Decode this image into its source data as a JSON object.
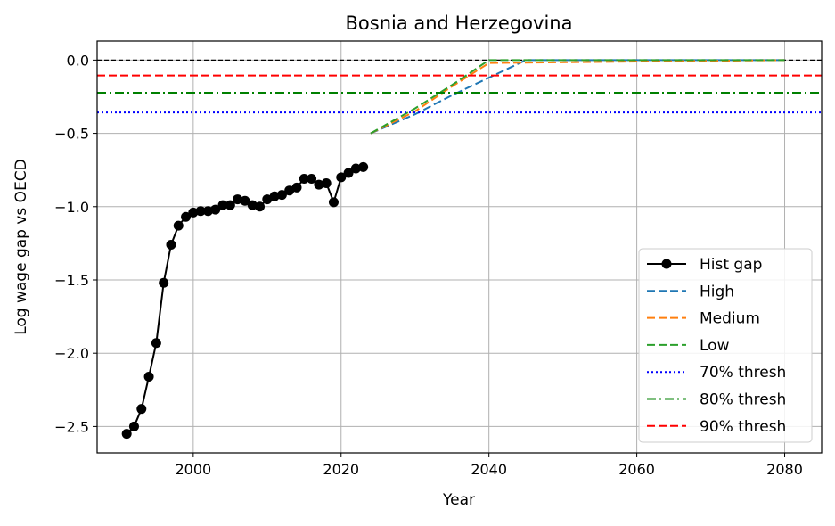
{
  "chart_data": {
    "type": "line",
    "title": "Bosnia and Herzegovina",
    "xlabel": "Year",
    "ylabel": "Log wage gap vs OECD",
    "xlim": [
      1987,
      2085
    ],
    "ylim": [
      -2.68,
      0.13
    ],
    "xticks": [
      2000,
      2020,
      2040,
      2060,
      2080
    ],
    "yticks": [
      0.0,
      -0.5,
      -1.0,
      -1.5,
      -2.0,
      -2.5
    ],
    "ytick_labels": [
      "0.0",
      "−0.5",
      "−1.0",
      "−1.5",
      "−2.0",
      "−2.5"
    ],
    "grid": true,
    "legend_position": "lower-right",
    "series": [
      {
        "name": "Hist gap",
        "kind": "history",
        "color": "#000000",
        "style": "solid",
        "marker": "circle",
        "x": [
          1991,
          1992,
          1993,
          1994,
          1995,
          1996,
          1997,
          1998,
          1999,
          2000,
          2001,
          2002,
          2003,
          2004,
          2005,
          2006,
          2007,
          2008,
          2009,
          2010,
          2011,
          2012,
          2013,
          2014,
          2015,
          2016,
          2017,
          2018,
          2019,
          2020,
          2021,
          2022,
          2023
        ],
        "y": [
          -2.55,
          -2.5,
          -2.38,
          -2.16,
          -1.93,
          -1.52,
          -1.26,
          -1.13,
          -1.07,
          -1.04,
          -1.03,
          -1.03,
          -1.02,
          -0.99,
          -0.99,
          -0.95,
          -0.96,
          -0.99,
          -1.0,
          -0.95,
          -0.93,
          -0.92,
          -0.89,
          -0.87,
          -0.81,
          -0.81,
          -0.85,
          -0.84,
          -0.97,
          -0.8,
          -0.77,
          -0.74,
          -0.73
        ]
      },
      {
        "name": "High",
        "kind": "scenario",
        "color": "#1f77b4",
        "style": "dashed",
        "x": [
          2024,
          2030,
          2035,
          2040,
          2045,
          2080
        ],
        "y": [
          -0.5,
          -0.37,
          -0.24,
          -0.12,
          0.0,
          0.0
        ]
      },
      {
        "name": "Medium",
        "kind": "scenario",
        "color": "#ff7f0e",
        "style": "dashed",
        "x": [
          2024,
          2030,
          2035,
          2040,
          2080
        ],
        "y": [
          -0.5,
          -0.35,
          -0.18,
          -0.02,
          0.0
        ]
      },
      {
        "name": "Low",
        "kind": "scenario",
        "color": "#2ca02c",
        "style": "dashed",
        "x": [
          2024,
          2030,
          2035,
          2040,
          2080
        ],
        "y": [
          -0.5,
          -0.33,
          -0.17,
          0.0,
          0.0
        ]
      },
      {
        "name": "70% thresh",
        "kind": "threshold",
        "color": "#0000ff",
        "style": "dotted",
        "y_value": -0.357
      },
      {
        "name": "80% thresh",
        "kind": "threshold",
        "color": "#008000",
        "style": "dashdot",
        "y_value": -0.223
      },
      {
        "name": "90% thresh",
        "kind": "threshold",
        "color": "#ff0000",
        "style": "dashed",
        "y_value": -0.105
      }
    ],
    "reference_line": {
      "y_value": 0.0,
      "color": "#000000",
      "style": "dashed"
    }
  }
}
